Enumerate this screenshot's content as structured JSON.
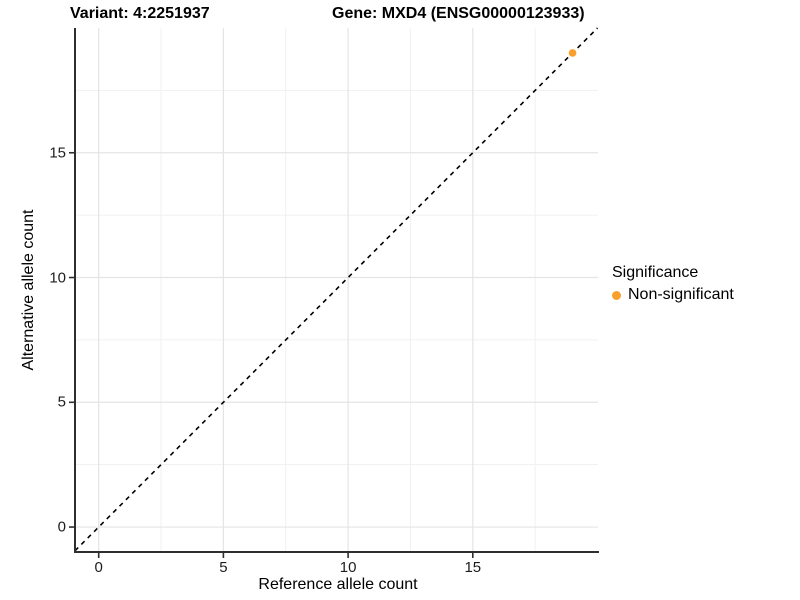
{
  "header": {
    "left_title": "Variant: 4:2251937",
    "right_title": "Gene: MXD4 (ENSG00000123933)"
  },
  "chart_data": {
    "type": "scatter",
    "titles": {
      "left": "Variant: 4:2251937",
      "right": "Gene: MXD4 (ENSG00000123933)"
    },
    "xlabel": "Reference allele count",
    "ylabel": "Alternative allele count",
    "xlim": [
      -0.95,
      20.02
    ],
    "ylim": [
      -1,
      20
    ],
    "x_major_ticks": [
      0,
      5,
      10,
      15
    ],
    "x_minor_ticks": [
      2.5,
      7.5,
      12.5,
      17.5
    ],
    "y_major_ticks": [
      0,
      5,
      10,
      15
    ],
    "y_minor_ticks": [
      2.5,
      7.5,
      12.5,
      17.5
    ],
    "grid": true,
    "identity_line": {
      "slope": 1,
      "intercept": 0,
      "style": "dashed",
      "color": "#000000"
    },
    "series": [
      {
        "name": "Non-significant",
        "color": "#F9A02C",
        "points": [
          {
            "x": 19,
            "y": 19
          }
        ]
      }
    ],
    "legend": {
      "title": "Significance",
      "position": "right",
      "items": [
        {
          "label": "Non-significant",
          "color": "#F9A02C"
        }
      ]
    },
    "colors": {
      "grid_major": "#e4e4e4",
      "grid_minor": "#f1f1f1",
      "axis": "#2e2e2e",
      "point": "#F9A02C",
      "background": "#ffffff"
    }
  }
}
